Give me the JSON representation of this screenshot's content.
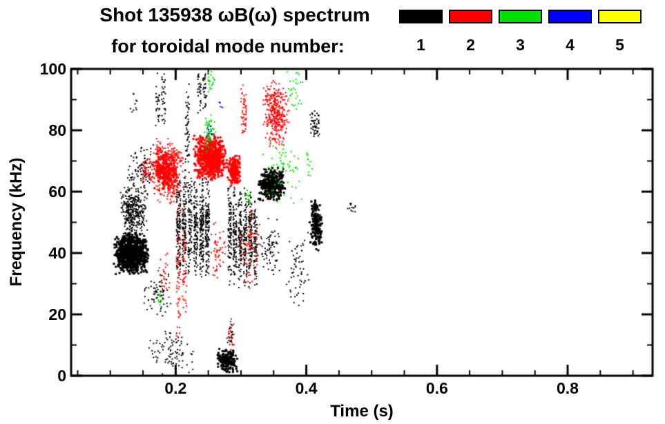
{
  "title": {
    "line1": "Shot 135938 ωB(ω) spectrum",
    "line2": "for toroidal mode number:"
  },
  "legend": {
    "items": [
      {
        "label": "1",
        "color": "#000000"
      },
      {
        "label": "2",
        "color": "#ff0000"
      },
      {
        "label": "3",
        "color": "#00e000"
      },
      {
        "label": "4",
        "color": "#0000ff"
      },
      {
        "label": "5",
        "color": "#ffff00"
      }
    ]
  },
  "chart_data": {
    "type": "scatter",
    "title": "Shot 135938 ωB(ω) spectrum for toroidal mode number",
    "xlabel": "Time (s)",
    "ylabel": "Frequency (kHz)",
    "xlim": [
      0.04,
      0.93
    ],
    "ylim": [
      0,
      100
    ],
    "grid": false,
    "legend_position": "top-right",
    "x_ticks": {
      "values": [
        0.2,
        0.4,
        0.6,
        0.8
      ],
      "labels": [
        "0.2",
        "0.4",
        "0.6",
        "0.8"
      ],
      "minor_step": 0.05
    },
    "y_ticks": {
      "values": [
        0,
        20,
        40,
        60,
        80,
        100
      ],
      "labels": [
        "0",
        "20",
        "40",
        "60",
        "80",
        "100"
      ],
      "minor_step": 10
    },
    "series": [
      {
        "name": "n=1",
        "color": "#000000",
        "clusters": [
          {
            "t": [
              0.105,
              0.16
            ],
            "f": [
              33,
              47
            ],
            "n": 900,
            "size": 3
          },
          {
            "t": [
              0.112,
              0.158
            ],
            "f": [
              45,
              62
            ],
            "n": 320,
            "size": 2
          },
          {
            "t": [
              0.122,
              0.175
            ],
            "f": [
              58,
              76
            ],
            "n": 110,
            "size": 2
          },
          {
            "t": [
              0.15,
              0.196
            ],
            "f": [
              18,
              35
            ],
            "n": 70,
            "size": 2
          },
          {
            "t": [
              0.168,
              0.186
            ],
            "f": [
              80,
              100
            ],
            "n": 55,
            "size": 2,
            "streaks": 2
          },
          {
            "t": [
              0.2,
              0.253
            ],
            "f": [
              30,
              66
            ],
            "n": 750,
            "size": 2,
            "streaks": 6
          },
          {
            "t": [
              0.213,
              0.222
            ],
            "f": [
              58,
              100
            ],
            "n": 60,
            "size": 2,
            "streaks": 1
          },
          {
            "t": [
              0.232,
              0.249
            ],
            "f": [
              84,
              100
            ],
            "n": 55,
            "size": 2,
            "streaks": 2
          },
          {
            "t": [
              0.279,
              0.326
            ],
            "f": [
              28,
              63
            ],
            "n": 600,
            "size": 2,
            "streaks": 6
          },
          {
            "t": [
              0.326,
              0.368
            ],
            "f": [
              57,
              68
            ],
            "n": 420,
            "size": 3
          },
          {
            "t": [
              0.33,
              0.36
            ],
            "f": [
              32,
              52
            ],
            "n": 70,
            "size": 2
          },
          {
            "t": [
              0.368,
              0.405
            ],
            "f": [
              22,
              48
            ],
            "n": 60,
            "size": 2
          },
          {
            "t": [
              0.405,
              0.425
            ],
            "f": [
              40,
              58
            ],
            "n": 180,
            "size": 3
          },
          {
            "t": [
              0.405,
              0.422
            ],
            "f": [
              76,
              88
            ],
            "n": 50,
            "size": 2
          },
          {
            "t": [
              0.155,
              0.232
            ],
            "f": [
              0,
              16
            ],
            "n": 90,
            "size": 2
          },
          {
            "t": [
              0.262,
              0.296
            ],
            "f": [
              1,
              9
            ],
            "n": 170,
            "size": 3
          },
          {
            "t": [
              0.278,
              0.29
            ],
            "f": [
              9,
              18
            ],
            "n": 25,
            "size": 2
          },
          {
            "t": [
              0.462,
              0.478
            ],
            "f": [
              53,
              58
            ],
            "n": 12,
            "size": 2
          },
          {
            "t": [
              0.13,
              0.142
            ],
            "f": [
              84,
              96
            ],
            "n": 10,
            "size": 2
          }
        ]
      },
      {
        "name": "n=2",
        "color": "#ff0000",
        "clusters": [
          {
            "t": [
              0.158,
              0.216
            ],
            "f": [
              55,
              78
            ],
            "n": 350,
            "size": 2
          },
          {
            "t": [
              0.165,
              0.205
            ],
            "f": [
              60,
              74
            ],
            "n": 250,
            "size": 3
          },
          {
            "t": [
              0.226,
              0.279
            ],
            "f": [
              63,
              79
            ],
            "n": 650,
            "size": 3
          },
          {
            "t": [
              0.279,
              0.3
            ],
            "f": [
              62,
              72
            ],
            "n": 180,
            "size": 3
          },
          {
            "t": [
              0.2,
              0.218
            ],
            "f": [
              10,
              58
            ],
            "n": 90,
            "size": 2,
            "streaks": 2
          },
          {
            "t": [
              0.298,
              0.31
            ],
            "f": [
              75,
              98
            ],
            "n": 50,
            "size": 2,
            "streaks": 1
          },
          {
            "t": [
              0.332,
              0.374
            ],
            "f": [
              74,
              97
            ],
            "n": 350,
            "size": 2
          },
          {
            "t": [
              0.295,
              0.332
            ],
            "f": [
              28,
              55
            ],
            "n": 70,
            "size": 2
          },
          {
            "t": [
              0.25,
              0.28
            ],
            "f": [
              30,
              52
            ],
            "n": 55,
            "size": 2
          },
          {
            "t": [
              0.17,
              0.195
            ],
            "f": [
              24,
              40
            ],
            "n": 25,
            "size": 2
          },
          {
            "t": [
              0.145,
              0.163
            ],
            "f": [
              62,
              72
            ],
            "n": 35,
            "size": 2
          },
          {
            "t": [
              0.278,
              0.292
            ],
            "f": [
              8,
              20
            ],
            "n": 18,
            "size": 2
          }
        ]
      },
      {
        "name": "n=3",
        "color": "#00e000",
        "clusters": [
          {
            "t": [
              0.242,
              0.262
            ],
            "f": [
              72,
              86
            ],
            "n": 55,
            "size": 2
          },
          {
            "t": [
              0.247,
              0.262
            ],
            "f": [
              92,
              100
            ],
            "n": 22,
            "size": 2
          },
          {
            "t": [
              0.332,
              0.395
            ],
            "f": [
              55,
              78
            ],
            "n": 65,
            "size": 2
          },
          {
            "t": [
              0.368,
              0.398
            ],
            "f": [
              86,
              100
            ],
            "n": 30,
            "size": 2
          },
          {
            "t": [
              0.172,
              0.18
            ],
            "f": [
              22,
              28
            ],
            "n": 10,
            "size": 2
          },
          {
            "t": [
              0.303,
              0.318
            ],
            "f": [
              54,
              62
            ],
            "n": 12,
            "size": 2
          },
          {
            "t": [
              0.398,
              0.412
            ],
            "f": [
              64,
              74
            ],
            "n": 12,
            "size": 2
          }
        ]
      },
      {
        "name": "n=4",
        "color": "#0000ff",
        "clusters": [
          {
            "t": [
              0.247,
              0.258
            ],
            "f": [
              77,
              83
            ],
            "n": 7,
            "size": 2
          },
          {
            "t": [
              0.265,
              0.272
            ],
            "f": [
              86,
              90
            ],
            "n": 4,
            "size": 2
          }
        ]
      },
      {
        "name": "n=5",
        "color": "#ffff00",
        "clusters": []
      }
    ]
  }
}
